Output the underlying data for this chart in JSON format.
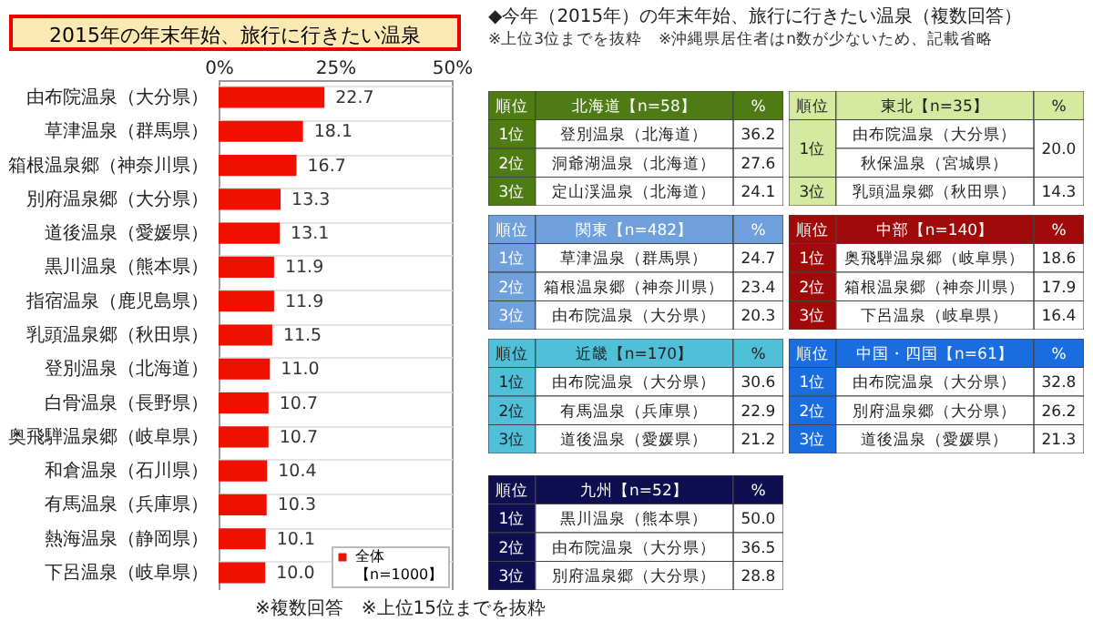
{
  "chart_data": [
    {
      "type": "bar",
      "orientation": "horizontal",
      "title": "2015年の年末年始、旅行に行きたい温泉",
      "categories": [
        "由布院温泉（大分県）",
        "草津温泉（群馬県）",
        "箱根温泉郷（神奈川県）",
        "別府温泉郷（大分県）",
        "道後温泉（愛媛県）",
        "黒川温泉（熊本県）",
        "指宿温泉（鹿児島県）",
        "乳頭温泉郷（秋田県）",
        "登別温泉（北海道）",
        "白骨温泉（長野県）",
        "奥飛騨温泉郷（岐阜県）",
        "和倉温泉（石川県）",
        "有馬温泉（兵庫県）",
        "熱海温泉（静岡県）",
        "下呂温泉（岐阜県）"
      ],
      "series": [
        {
          "name": "全体【n=1000】",
          "color": "#ee1100",
          "values": [
            22.7,
            18.1,
            16.7,
            13.3,
            13.1,
            11.9,
            11.9,
            11.5,
            11.0,
            10.7,
            10.7,
            10.4,
            10.3,
            10.1,
            10.0
          ]
        }
      ],
      "xlim": [
        0,
        50
      ],
      "xticks": [
        {
          "value": 0,
          "label": "0%"
        },
        {
          "value": 25,
          "label": "25%"
        },
        {
          "value": 50,
          "label": "50%"
        }
      ],
      "value_labels": [
        "22.7",
        "18.1",
        "16.7",
        "13.3",
        "13.1",
        "11.9",
        "11.9",
        "11.5",
        "11.0",
        "10.7",
        "10.7",
        "10.4",
        "10.3",
        "10.1",
        "10.0"
      ],
      "grid": "y",
      "legend": "bottom right",
      "annotations": [
        "※複数回答　※上位15位までを抜粋"
      ]
    },
    {
      "type": "other",
      "title": "◆今年（2015年）の年末年始、旅行に行きたい温泉（複数回答）",
      "subtitle": "※上位3位までを抜粋　※沖縄県居住者はn数が少ないため、記載省略"
    },
    {
      "type": "other",
      "title": "北海道【n=58】",
      "color": "#4e7b13",
      "annotations": [
        "順位",
        "%"
      ],
      "y_categories": [
        "1位",
        "2位",
        "3位"
      ],
      "categories": [
        "登別温泉（北海道）",
        "洞爺湖温泉（北海道）",
        "定山渓温泉（北海道）"
      ],
      "value_labels": [
        "36.2",
        "27.6",
        "24.1"
      ]
    },
    {
      "type": "other",
      "title": "東北【n=35】",
      "color": "#d5eaa0",
      "annotations": [
        "順位",
        "%"
      ],
      "y_categories": [
        "1位",
        null,
        "3位"
      ],
      "categories": [
        "由布院温泉（大分県）",
        "秋保温泉（宮城県）",
        "乳頭温泉郷（秋田県）"
      ],
      "value_labels": [
        "20.0",
        null,
        "14.3"
      ]
    },
    {
      "type": "other",
      "title": "関東【n=482】",
      "color": "#6fa0dc",
      "annotations": [
        "順位",
        "%"
      ],
      "y_categories": [
        "1位",
        "2位",
        "3位"
      ],
      "categories": [
        "草津温泉（群馬県）",
        "箱根温泉郷（神奈川県）",
        "由布院温泉（大分県）"
      ],
      "value_labels": [
        "24.7",
        "23.4",
        "20.3"
      ]
    },
    {
      "type": "other",
      "title": "中部【n=140】",
      "color": "#a00a0a",
      "annotations": [
        "順位",
        "%"
      ],
      "y_categories": [
        "1位",
        "2位",
        "3位"
      ],
      "categories": [
        "奥飛騨温泉郷（岐阜県）",
        "箱根温泉郷（神奈川県）",
        "下呂温泉（岐阜県）"
      ],
      "value_labels": [
        "18.6",
        "17.9",
        "16.4"
      ]
    },
    {
      "type": "other",
      "title": "近畿【n=170】",
      "color": "#4fc0d8",
      "annotations": [
        "順位",
        "%"
      ],
      "y_categories": [
        "1位",
        "2位",
        "3位"
      ],
      "categories": [
        "由布院温泉（大分県）",
        "有馬温泉（兵庫県）",
        "道後温泉（愛媛県）"
      ],
      "value_labels": [
        "30.6",
        "22.9",
        "21.2"
      ]
    },
    {
      "type": "other",
      "title": "中国・四国【n=61】",
      "color": "#1a6de0",
      "annotations": [
        "順位",
        "%"
      ],
      "y_categories": [
        "1位",
        "2位",
        "3位"
      ],
      "categories": [
        "由布院温泉（大分県）",
        "別府温泉郷（大分県）",
        "道後温泉（愛媛県）"
      ],
      "value_labels": [
        "32.8",
        "26.2",
        "21.3"
      ]
    },
    {
      "type": "other",
      "title": "九州【n=52】",
      "color": "#0e0e50",
      "annotations": [
        "順位",
        "%"
      ],
      "y_categories": [
        "1位",
        "2位",
        "3位"
      ],
      "categories": [
        "黒川温泉（熊本県）",
        "由布院温泉（大分県）",
        "別府温泉郷（大分県）"
      ],
      "value_labels": [
        "50.0",
        "36.5",
        "28.8"
      ]
    }
  ]
}
